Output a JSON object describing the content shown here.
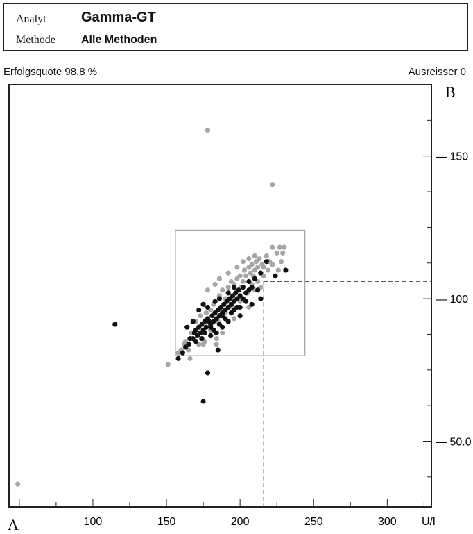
{
  "header": {
    "analyt_label": "Analyt",
    "analyt_value": "Gamma-GT",
    "methode_label": "Methode",
    "methode_value": "Alle Methoden"
  },
  "stats": {
    "success_rate": "Erfolgsquote 98,8 %",
    "outliers": "Ausreisser 0"
  },
  "colors": {
    "series_a": "#111111",
    "series_b": "#a6a6a6",
    "frame": "#222222",
    "target_box": "#a6a6a6",
    "reference_line": "#555555"
  },
  "chart_data": {
    "type": "scatter",
    "x_axis_label": "A",
    "y_axis_label": "B",
    "unit": "U/l",
    "x_ticks": [
      "100",
      "150",
      "200",
      "250",
      "300"
    ],
    "y_ticks": [
      "50.0",
      "100",
      "150"
    ],
    "xlim": [
      43,
      330
    ],
    "ylim": [
      27,
      175
    ],
    "target_x": 216,
    "target_y": 106,
    "box_x": [
      156,
      244
    ],
    "box_y": [
      80,
      124
    ],
    "series": [
      {
        "color": "dark",
        "points": [
          [
            115,
            91
          ],
          [
            158,
            79
          ],
          [
            161,
            81
          ],
          [
            163,
            83
          ],
          [
            165,
            84
          ],
          [
            166,
            86
          ],
          [
            168,
            86
          ],
          [
            169,
            88
          ],
          [
            170,
            89
          ],
          [
            171,
            87
          ],
          [
            172,
            90
          ],
          [
            173,
            88
          ],
          [
            174,
            91
          ],
          [
            175,
            89
          ],
          [
            176,
            92
          ],
          [
            177,
            90
          ],
          [
            178,
            93
          ],
          [
            179,
            92
          ],
          [
            180,
            91
          ],
          [
            181,
            94
          ],
          [
            182,
            92
          ],
          [
            183,
            95
          ],
          [
            184,
            93
          ],
          [
            185,
            96
          ],
          [
            186,
            94
          ],
          [
            187,
            97
          ],
          [
            188,
            95
          ],
          [
            189,
            98
          ],
          [
            190,
            96
          ],
          [
            191,
            99
          ],
          [
            192,
            97
          ],
          [
            193,
            100
          ],
          [
            194,
            98
          ],
          [
            195,
            101
          ],
          [
            196,
            99
          ],
          [
            197,
            102
          ],
          [
            198,
            100
          ],
          [
            199,
            103
          ],
          [
            200,
            101
          ],
          [
            202,
            104
          ],
          [
            204,
            102
          ],
          [
            206,
            106
          ],
          [
            208,
            104
          ],
          [
            210,
            107
          ],
          [
            212,
            103
          ],
          [
            214,
            109
          ],
          [
            218,
            113
          ],
          [
            172,
            96
          ],
          [
            175,
            98
          ],
          [
            178,
            97
          ],
          [
            183,
            99
          ],
          [
            186,
            100
          ],
          [
            192,
            102
          ],
          [
            196,
            104
          ],
          [
            200,
            97
          ],
          [
            204,
            99
          ],
          [
            180,
            87
          ],
          [
            184,
            88
          ],
          [
            188,
            90
          ],
          [
            192,
            92
          ],
          [
            168,
            92
          ],
          [
            164,
            90
          ],
          [
            170,
            85
          ],
          [
            185,
            82
          ],
          [
            200,
            94
          ],
          [
            208,
            98
          ],
          [
            214,
            100
          ],
          [
            224,
            108
          ],
          [
            231,
            110
          ],
          [
            178,
            74
          ],
          [
            175,
            64
          ],
          [
            180,
            90
          ],
          [
            182,
            89
          ],
          [
            186,
            91
          ],
          [
            190,
            93
          ],
          [
            194,
            95
          ],
          [
            198,
            97
          ],
          [
            176,
            88
          ],
          [
            174,
            86
          ],
          [
            188,
            94
          ],
          [
            196,
            96
          ],
          [
            202,
            100
          ],
          [
            206,
            103
          ]
        ]
      },
      {
        "color": "light",
        "points": [
          [
            49,
            35
          ],
          [
            151,
            77
          ],
          [
            178,
            159
          ],
          [
            222,
            140
          ],
          [
            160,
            82
          ],
          [
            163,
            85
          ],
          [
            165,
            82
          ],
          [
            167,
            88
          ],
          [
            170,
            92
          ],
          [
            173,
            94
          ],
          [
            175,
            84
          ],
          [
            177,
            95
          ],
          [
            180,
            96
          ],
          [
            182,
            98
          ],
          [
            184,
            86
          ],
          [
            186,
            101
          ],
          [
            188,
            103
          ],
          [
            190,
            100
          ],
          [
            192,
            104
          ],
          [
            194,
            106
          ],
          [
            196,
            105
          ],
          [
            198,
            107
          ],
          [
            200,
            108
          ],
          [
            202,
            106
          ],
          [
            203,
            110
          ],
          [
            204,
            108
          ],
          [
            206,
            111
          ],
          [
            207,
            109
          ],
          [
            208,
            112
          ],
          [
            210,
            110
          ],
          [
            211,
            113
          ],
          [
            212,
            111
          ],
          [
            213,
            114
          ],
          [
            215,
            112
          ],
          [
            218,
            115
          ],
          [
            220,
            113
          ],
          [
            222,
            118
          ],
          [
            225,
            116
          ],
          [
            227,
            118
          ],
          [
            229,
            116
          ],
          [
            230,
            118
          ],
          [
            208,
            105
          ],
          [
            210,
            103
          ],
          [
            212,
            106
          ],
          [
            214,
            104
          ],
          [
            216,
            108
          ],
          [
            206,
            97
          ],
          [
            196,
            93
          ],
          [
            188,
            88
          ],
          [
            184,
            84
          ],
          [
            176,
            85
          ],
          [
            172,
            84
          ],
          [
            178,
            103
          ],
          [
            183,
            105
          ],
          [
            186,
            107
          ],
          [
            192,
            109
          ],
          [
            198,
            111
          ],
          [
            202,
            113
          ],
          [
            206,
            114
          ],
          [
            210,
            115
          ],
          [
            166,
            79
          ],
          [
            162,
            84
          ],
          [
            158,
            81
          ],
          [
            195,
            97
          ],
          [
            200,
            99
          ],
          [
            205,
            102
          ],
          [
            190,
            95
          ],
          [
            185,
            92
          ],
          [
            180,
            89
          ],
          [
            222,
            112
          ],
          [
            228,
            113
          ],
          [
            219,
            110
          ],
          [
            226,
            110
          ],
          [
            216,
            111
          ],
          [
            209,
            108
          ],
          [
            201,
            104
          ]
        ]
      }
    ]
  }
}
